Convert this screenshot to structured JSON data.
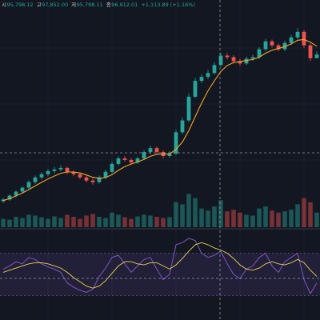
{
  "chart_data": {
    "type": "candlestick",
    "ohlc_header": [
      {
        "label": "시",
        "value": "95,798.12"
      },
      {
        "label": "고",
        "value": "97,852.00"
      },
      {
        "label": "저",
        "value": "95,798.11"
      },
      {
        "label": "종",
        "value": "96,912.01"
      }
    ],
    "change": "+1,113.89 (+1.16%)",
    "up_color": "#26a69a",
    "down_color": "#ef5350",
    "ma_color": "#f5a623",
    "rsi_color": "#7e57c2",
    "rsi_signal_color": "#e8d44d",
    "ylim": [
      45000,
      108000
    ],
    "volume_lim": [
      0,
      100
    ],
    "rsi_lim": [
      10,
      90
    ],
    "rsi_band": [
      30,
      70
    ],
    "candles": [
      [
        52800,
        53900,
        52300,
        53320
      ],
      [
        53320,
        54900,
        52900,
        54508
      ],
      [
        54508,
        56100,
        54000,
        55697
      ],
      [
        55697,
        57300,
        55200,
        56885
      ],
      [
        56885,
        59100,
        56400,
        58549
      ],
      [
        58549,
        60500,
        58000,
        59975
      ],
      [
        59975,
        61500,
        59400,
        60926
      ],
      [
        60926,
        62400,
        60300,
        61877
      ],
      [
        61877,
        63100,
        61200,
        62352
      ],
      [
        62352,
        63600,
        61800,
        62828
      ],
      [
        62828,
        63200,
        61000,
        61639
      ],
      [
        61639,
        62100,
        60300,
        60926
      ],
      [
        60926,
        61400,
        59400,
        59975
      ],
      [
        59975,
        60500,
        58400,
        59024
      ],
      [
        59024,
        59700,
        57800,
        58549
      ],
      [
        58549,
        60600,
        58100,
        59975
      ],
      [
        59975,
        62300,
        59500,
        61639
      ],
      [
        61639,
        64700,
        61200,
        64016
      ],
      [
        64016,
        66300,
        63500,
        65680
      ],
      [
        65680,
        66400,
        64700,
        65205
      ],
      [
        65205,
        65800,
        63800,
        64491
      ],
      [
        64491,
        66200,
        64000,
        65680
      ],
      [
        65680,
        68200,
        65200,
        67582
      ],
      [
        67582,
        69500,
        67000,
        68770
      ],
      [
        68770,
        69300,
        66900,
        67582
      ],
      [
        67582,
        68100,
        65700,
        66393
      ],
      [
        66393,
        67800,
        65900,
        67106
      ],
      [
        67106,
        74300,
        66700,
        73524
      ],
      [
        73524,
        78000,
        73000,
        77090
      ],
      [
        77090,
        85200,
        76600,
        84221
      ],
      [
        84221,
        89900,
        83700,
        88975
      ],
      [
        88975,
        91000,
        88300,
        90163
      ],
      [
        90163,
        92300,
        89500,
        91352
      ],
      [
        91352,
        94600,
        90800,
        93729
      ],
      [
        93729,
        97500,
        93200,
        96581
      ],
      [
        96581,
        97300,
        95400,
        96106
      ],
      [
        96106,
        96700,
        94200,
        94917
      ],
      [
        94917,
        95600,
        93500,
        94204
      ],
      [
        94204,
        96300,
        93700,
        95630
      ],
      [
        95630,
        96900,
        95000,
        96106
      ],
      [
        96106,
        99200,
        95600,
        98483
      ],
      [
        98483,
        101600,
        97900,
        100860
      ],
      [
        100860,
        101400,
        99000,
        99671
      ],
      [
        99671,
        100200,
        97800,
        98483
      ],
      [
        98483,
        101100,
        97900,
        100384
      ],
      [
        100384,
        102800,
        99800,
        102048
      ],
      [
        102048,
        104800,
        101500,
        103712
      ],
      [
        103712,
        104300,
        98900,
        99671
      ],
      [
        99671,
        100200,
        95000,
        95798.12
      ],
      [
        95798.12,
        97852,
        95798.11,
        96912.01
      ]
    ],
    "ma": [
      53000,
      53600,
      54400,
      55300,
      56300,
      57400,
      58500,
      59500,
      60400,
      61200,
      61600,
      61600,
      61300,
      60700,
      60000,
      59700,
      59900,
      60800,
      62100,
      63200,
      64000,
      64600,
      65400,
      66300,
      66900,
      67000,
      67000,
      68400,
      70600,
      74000,
      78200,
      82300,
      86000,
      89000,
      91800,
      93600,
      94500,
      94800,
      95100,
      95400,
      96100,
      97300,
      98200,
      98700,
      99300,
      100100,
      101200,
      101400,
      100600,
      99400
    ],
    "volume": [
      20,
      18,
      25,
      22,
      30,
      28,
      24,
      20,
      26,
      22,
      30,
      25,
      20,
      28,
      32,
      25,
      22,
      35,
      30,
      24,
      20,
      26,
      30,
      28,
      25,
      22,
      24,
      60,
      55,
      80,
      70,
      45,
      40,
      50,
      65,
      38,
      42,
      35,
      30,
      28,
      45,
      50,
      40,
      35,
      38,
      42,
      55,
      70,
      60,
      35
    ],
    "rsi": [
      55,
      58,
      62,
      60,
      66,
      64,
      60,
      57,
      55,
      52,
      42,
      38,
      35,
      33,
      36,
      48,
      56,
      66,
      68,
      60,
      52,
      58,
      64,
      66,
      55,
      45,
      50,
      78,
      80,
      84,
      82,
      70,
      66,
      68,
      72,
      60,
      50,
      46,
      55,
      58,
      66,
      70,
      58,
      52,
      62,
      66,
      70,
      45,
      32,
      42
    ],
    "rsi_signal": [
      52,
      54,
      56,
      58,
      60,
      61,
      61,
      60,
      58,
      56,
      52,
      47,
      43,
      39,
      37,
      39,
      44,
      51,
      58,
      62,
      62,
      60,
      59,
      61,
      61,
      58,
      55,
      59,
      65,
      72,
      78,
      80,
      78,
      75,
      73,
      70,
      65,
      59,
      55,
      54,
      56,
      60,
      62,
      60,
      59,
      61,
      64,
      61,
      54,
      48
    ]
  }
}
